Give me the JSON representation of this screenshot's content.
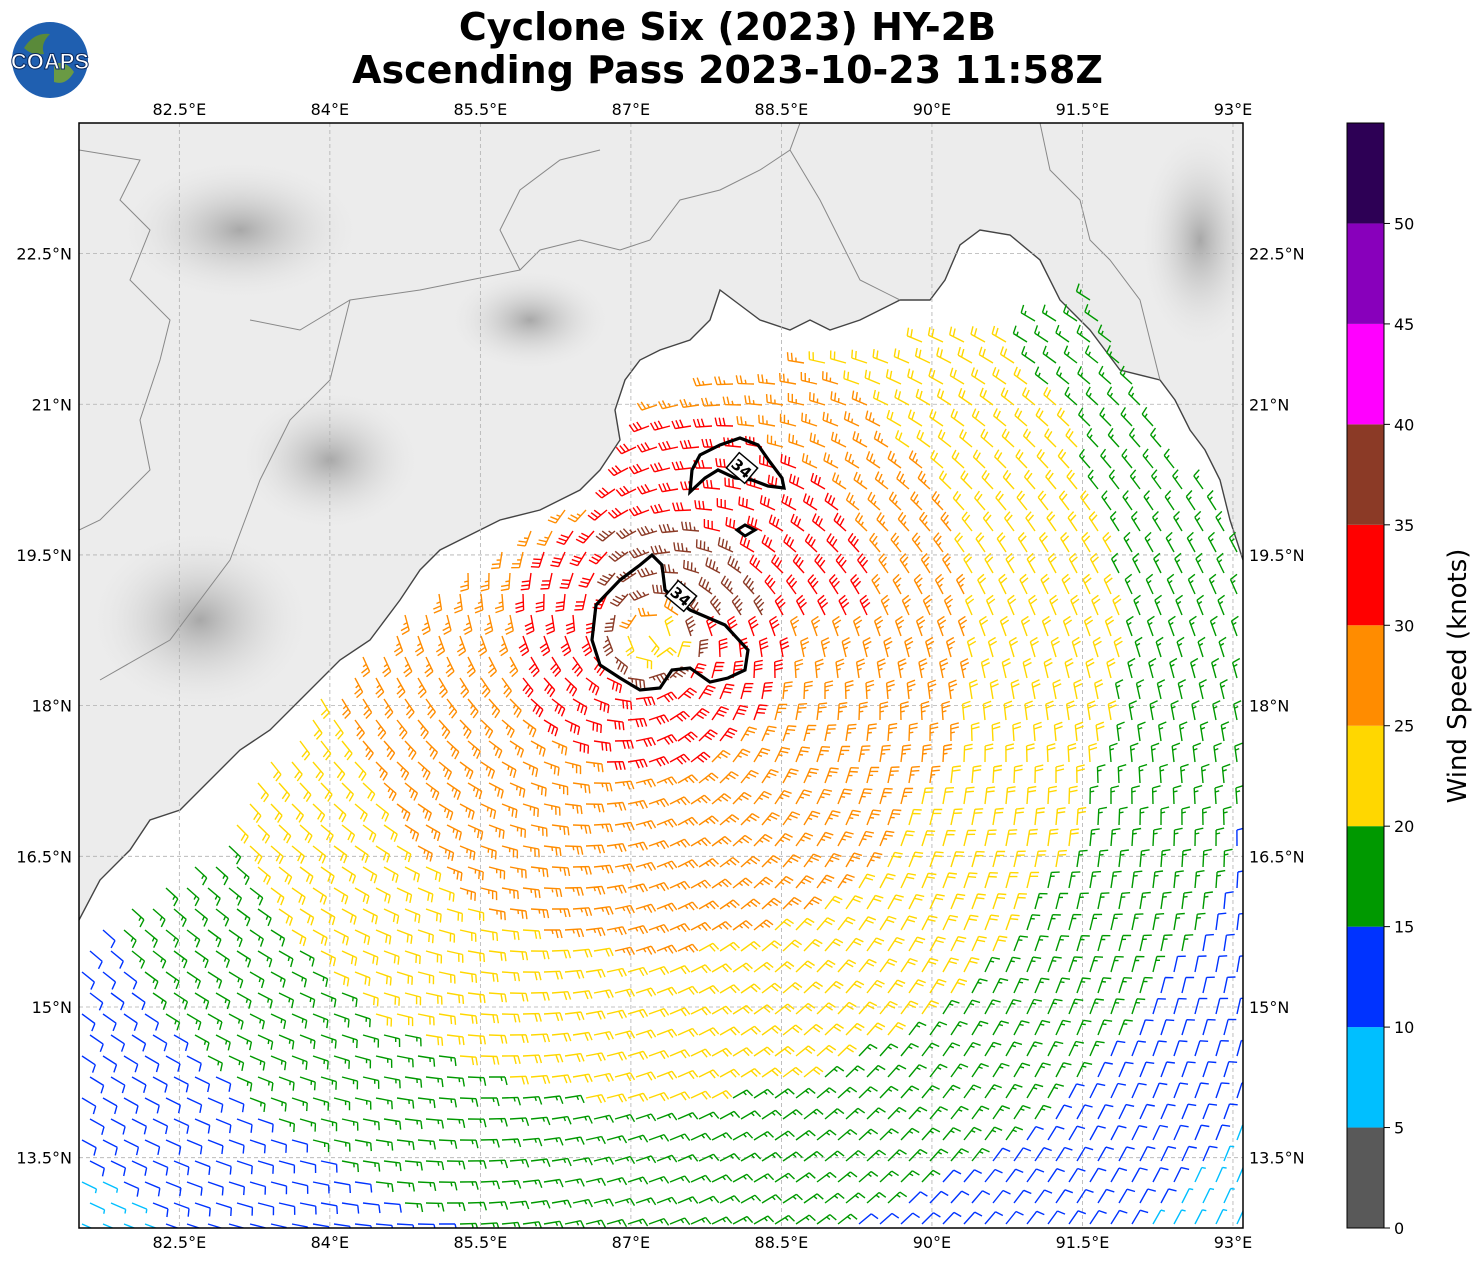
{
  "header": {
    "title_line1": "Cyclone Six (2023) HY-2B",
    "title_line2": "Ascending Pass 2023-10-23 11:58Z",
    "logo_text": "COAPS"
  },
  "map": {
    "lon_range": [
      81.5,
      93.1
    ],
    "lat_range": [
      12.8,
      23.8
    ],
    "lon_ticks": [
      "82.5°E",
      "84°E",
      "85.5°E",
      "87°E",
      "88.5°E",
      "90°E",
      "91.5°E",
      "93°E"
    ],
    "lon_tick_values": [
      82.5,
      84,
      85.5,
      87,
      88.5,
      90,
      91.5,
      93
    ],
    "lat_ticks": [
      "13.5°N",
      "15°N",
      "16.5°N",
      "18°N",
      "19.5°N",
      "21°N",
      "22.5°N"
    ],
    "lat_tick_values": [
      13.5,
      15,
      16.5,
      18,
      19.5,
      21,
      22.5
    ],
    "grid": true,
    "contour_label": "34",
    "cyclone_center": [
      87.2,
      18.7
    ]
  },
  "colorbar": {
    "label": "Wind Speed (knots)",
    "ticks": [
      "0",
      "5",
      "10",
      "15",
      "20",
      "25",
      "30",
      "35",
      "40",
      "45",
      "50"
    ],
    "colors": [
      "#595959",
      "#00bfff",
      "#0033ff",
      "#009900",
      "#ffd700",
      "#ff8c00",
      "#ff0000",
      "#8b3a26",
      "#ff00ff",
      "#8800bb",
      "#2d0055"
    ]
  }
}
